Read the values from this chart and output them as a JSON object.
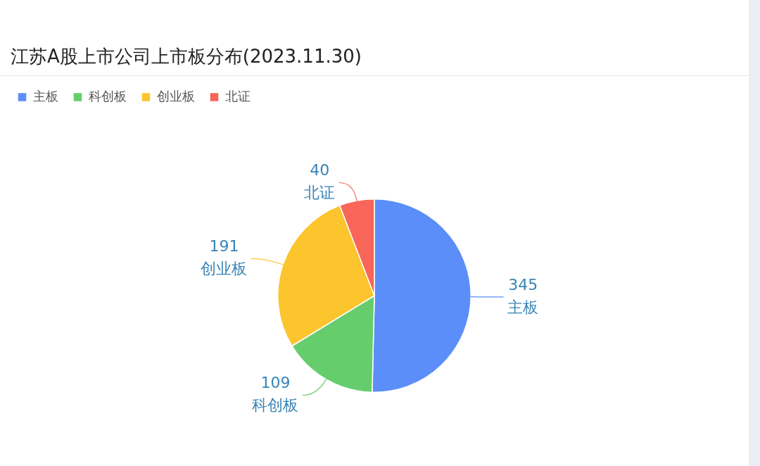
{
  "chart_data": {
    "type": "pie",
    "title": "江苏A股上市公司上市板分布(2023.11.30)",
    "categories": [
      "主板",
      "科创板",
      "创业板",
      "北证"
    ],
    "values": [
      345,
      109,
      191,
      40
    ],
    "colors": [
      "#5b8ef8",
      "#66cd6d",
      "#fcc42d",
      "#f76659"
    ],
    "legend": "top left",
    "data_labels": true
  }
}
